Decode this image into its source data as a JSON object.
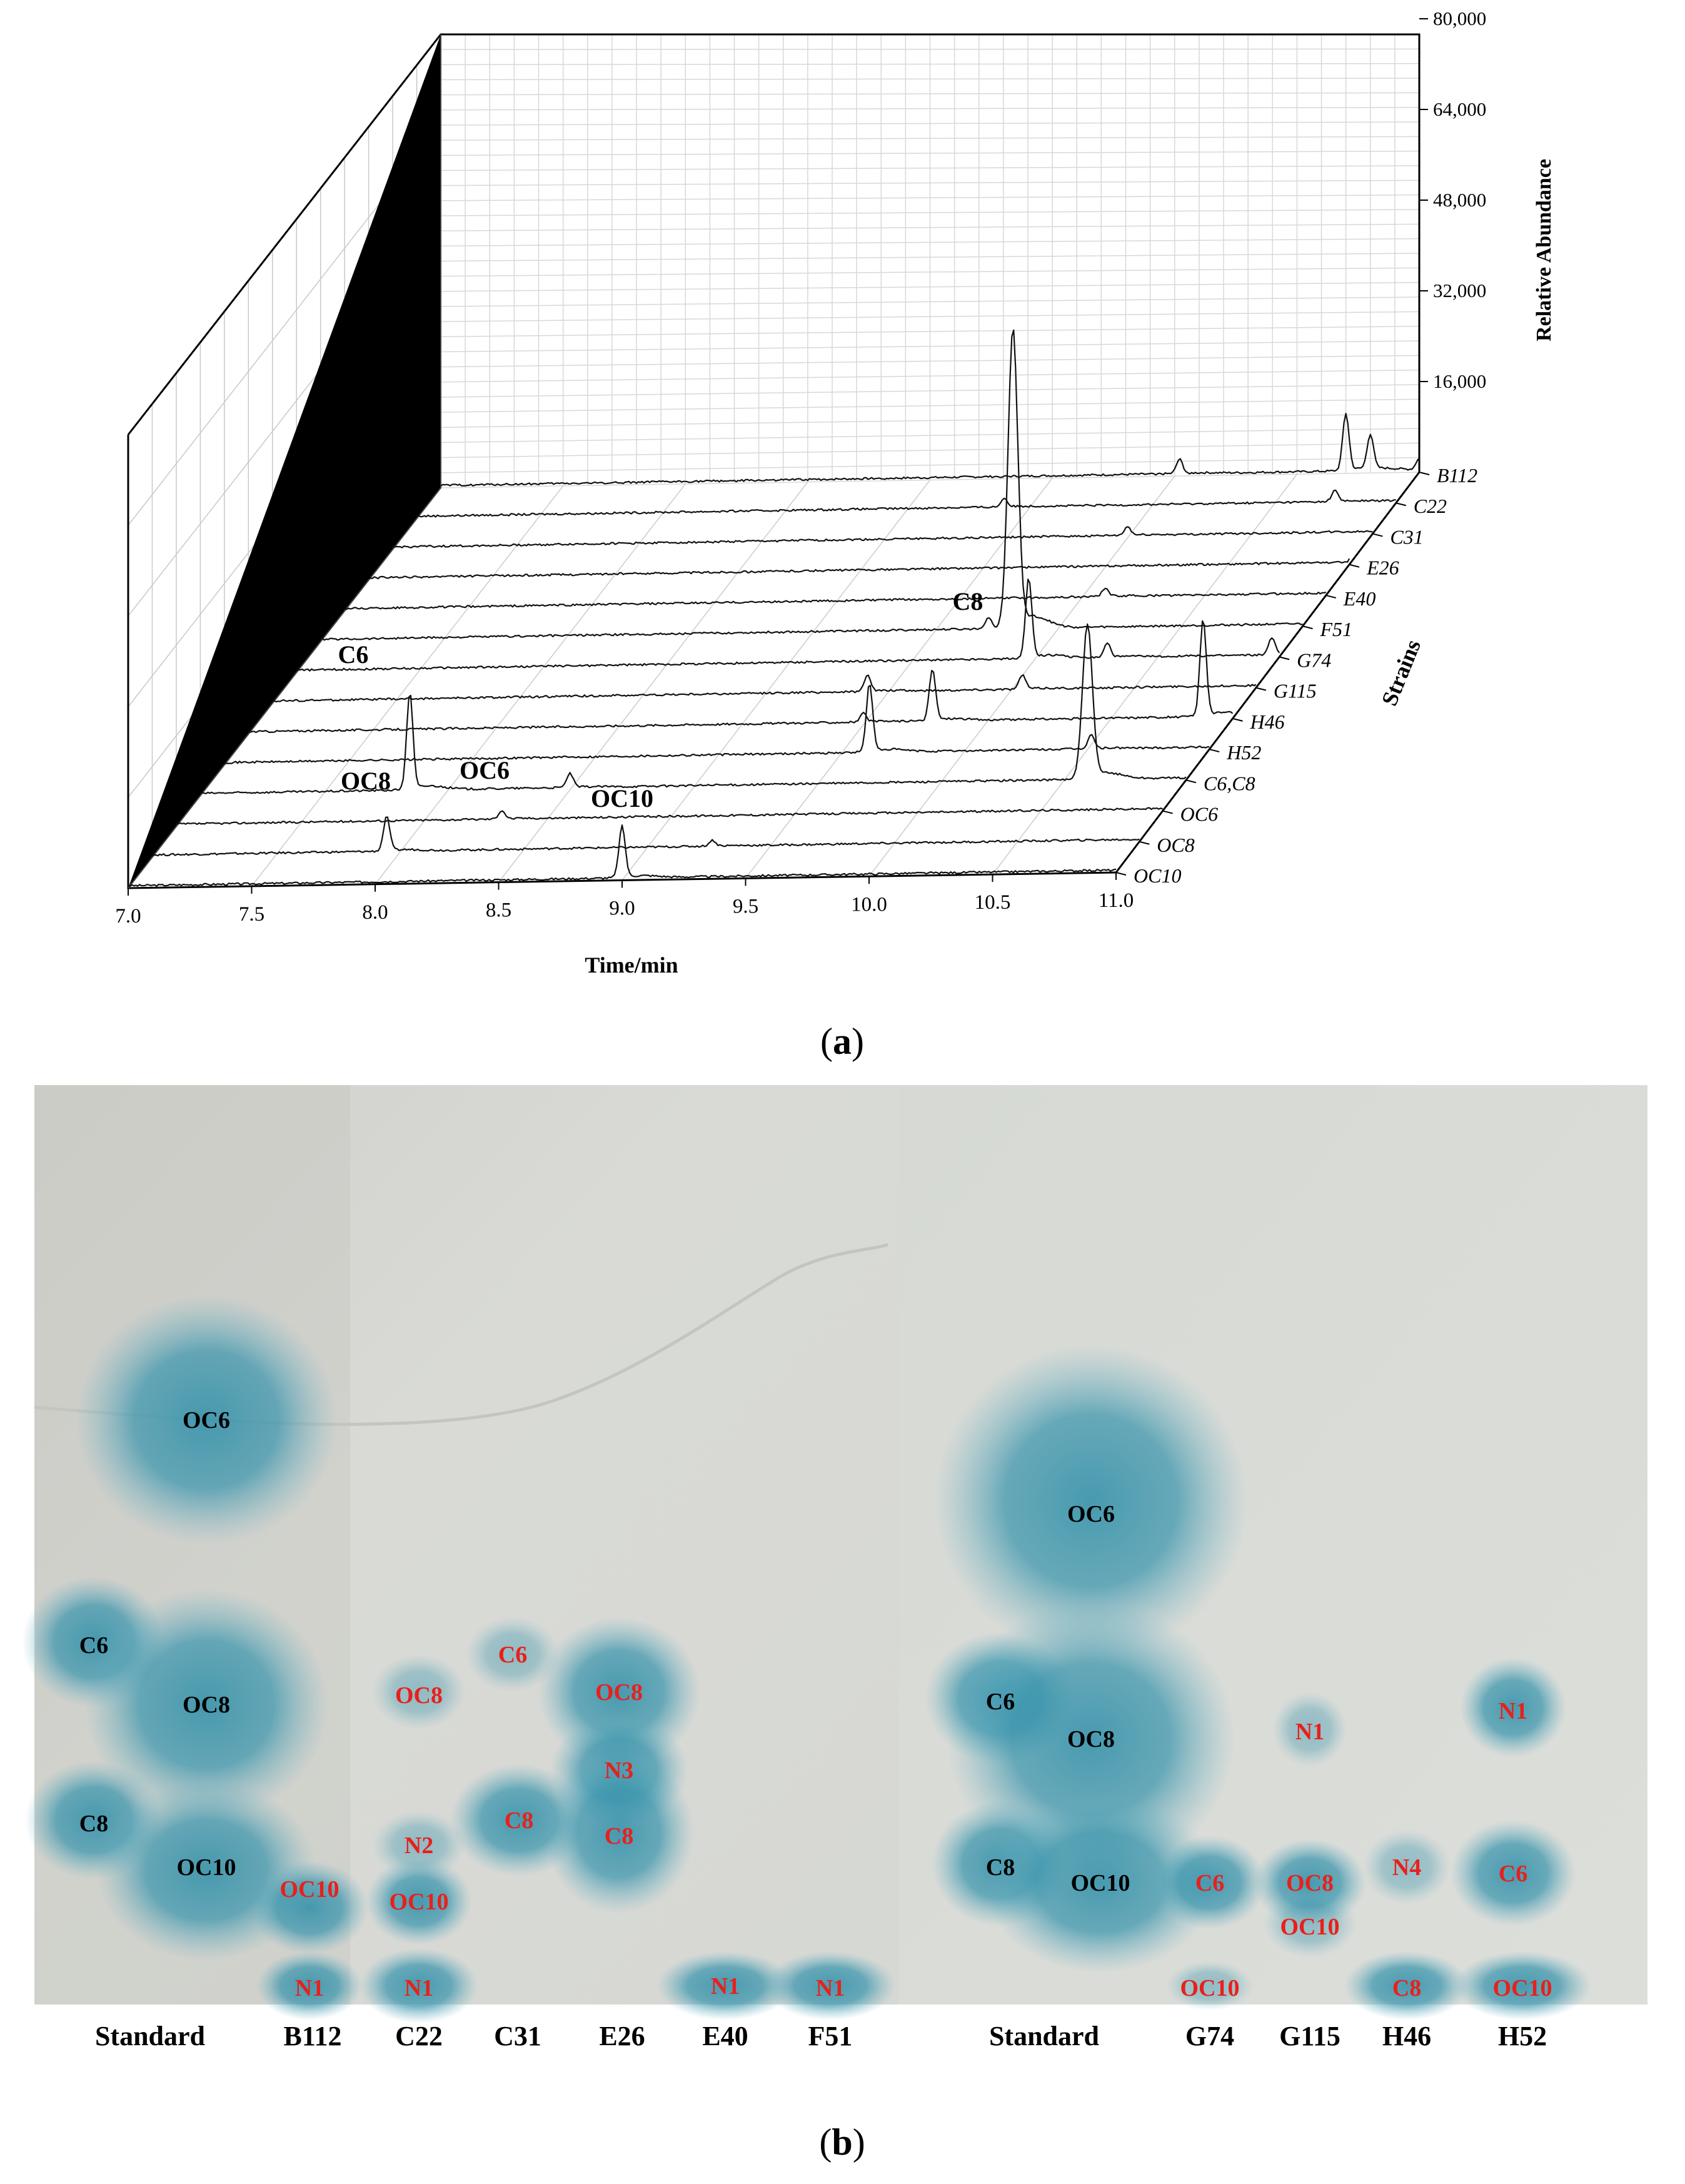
{
  "chart_data": [
    {
      "type": "line",
      "panel_label": "(a)",
      "panel_letter": "a",
      "xlabel": "Time/min",
      "ylabel": "Relative Abundance",
      "zlabel": "Strains",
      "xlim": [
        7.0,
        11.0
      ],
      "x_ticks": [
        "7.0",
        "7.5",
        "8.0",
        "8.5",
        "9.0",
        "9.5",
        "10.0",
        "10.5",
        "11.0"
      ],
      "ylim": [
        0,
        80000
      ],
      "y_ticks": [
        "16,000",
        "32,000",
        "48,000",
        "64,000",
        "80,000"
      ],
      "grid": true,
      "series": [
        {
          "name": "OC10",
          "peaks": [
            {
              "x": 9.0,
              "y": 9000
            }
          ]
        },
        {
          "name": "OC8",
          "peaks": [
            {
              "x": 7.95,
              "y": 6000
            },
            {
              "x": 9.27,
              "y": 1000
            }
          ]
        },
        {
          "name": "OC6",
          "peaks": [
            {
              "x": 8.32,
              "y": 1500
            }
          ]
        },
        {
          "name": "C6,C8",
          "peaks": [
            {
              "x": 7.85,
              "y": 17000
            },
            {
              "x": 8.5,
              "y": 2500
            },
            {
              "x": 10.6,
              "y": 27000
            }
          ]
        },
        {
          "name": "H52",
          "peaks": [
            {
              "x": 9.62,
              "y": 12000
            },
            {
              "x": 10.52,
              "y": 2500
            }
          ]
        },
        {
          "name": "H46",
          "peaks": [
            {
              "x": 9.5,
              "y": 1500
            },
            {
              "x": 9.78,
              "y": 9000
            },
            {
              "x": 10.88,
              "y": 17000
            }
          ]
        },
        {
          "name": "G115",
          "peaks": [
            {
              "x": 9.42,
              "y": 3000
            },
            {
              "x": 10.05,
              "y": 2500
            }
          ]
        },
        {
          "name": "G74",
          "peaks": [
            {
              "x": 9.98,
              "y": 14000
            },
            {
              "x": 10.3,
              "y": 2500
            },
            {
              "x": 10.97,
              "y": 3000
            }
          ]
        },
        {
          "name": "F51",
          "peaks": [
            {
              "x": 9.82,
              "y": 52000
            },
            {
              "x": 9.72,
              "y": 2000
            }
          ]
        },
        {
          "name": "E40",
          "peaks": [
            {
              "x": 10.1,
              "y": 1500
            }
          ]
        },
        {
          "name": "E26",
          "peaks": [
            {
              "x": 11.02,
              "y": 2000
            }
          ]
        },
        {
          "name": "C31",
          "peaks": [
            {
              "x": 10.0,
              "y": 1500
            },
            {
              "x": 11.3,
              "y": 16500
            }
          ]
        },
        {
          "name": "C22",
          "peaks": [
            {
              "x": 9.4,
              "y": 1500
            },
            {
              "x": 10.75,
              "y": 2000
            }
          ]
        },
        {
          "name": "B112",
          "peaks": [
            {
              "x": 10.02,
              "y": 2500
            },
            {
              "x": 10.7,
              "y": 10000
            },
            {
              "x": 10.8,
              "y": 6000
            },
            {
              "x": 11.0,
              "y": 2000
            }
          ]
        }
      ],
      "annotations": [
        "C6",
        "C8",
        "OC8",
        "OC6",
        "OC10"
      ]
    },
    {
      "type": "other",
      "panel_label": "(b)",
      "panel_letter": "b",
      "plates": [
        {
          "lanes": [
            "Standard",
            "B112",
            "C22",
            "C31",
            "E26",
            "E40",
            "F51"
          ],
          "spots": [
            {
              "label": "OC6",
              "color": "black"
            },
            {
              "label": "C6",
              "color": "black"
            },
            {
              "label": "OC8",
              "color": "black"
            },
            {
              "label": "C8",
              "color": "black"
            },
            {
              "label": "OC10",
              "color": "black"
            },
            {
              "label": "OC10",
              "color": "red"
            },
            {
              "label": "N1",
              "color": "red"
            },
            {
              "label": "OC8",
              "color": "red"
            },
            {
              "label": "N2",
              "color": "red"
            },
            {
              "label": "OC10",
              "color": "red"
            },
            {
              "label": "N1",
              "color": "red"
            },
            {
              "label": "C6",
              "color": "red"
            },
            {
              "label": "C8",
              "color": "red"
            },
            {
              "label": "OC8",
              "color": "red"
            },
            {
              "label": "N3",
              "color": "red"
            },
            {
              "label": "C8",
              "color": "red"
            },
            {
              "label": "N1",
              "color": "red"
            },
            {
              "label": "N1",
              "color": "red"
            }
          ]
        },
        {
          "lanes": [
            "Standard",
            "G74",
            "G115",
            "H46",
            "H52"
          ],
          "spots": [
            {
              "label": "OC6",
              "color": "black"
            },
            {
              "label": "C6",
              "color": "black"
            },
            {
              "label": "OC8",
              "color": "black"
            },
            {
              "label": "C8",
              "color": "black"
            },
            {
              "label": "OC10",
              "color": "black"
            },
            {
              "label": "C6",
              "color": "red"
            },
            {
              "label": "OC10",
              "color": "red"
            },
            {
              "label": "N1",
              "color": "red"
            },
            {
              "label": "OC8",
              "color": "red"
            },
            {
              "label": "OC10",
              "color": "red"
            },
            {
              "label": "N4",
              "color": "red"
            },
            {
              "label": "C8",
              "color": "red"
            },
            {
              "label": "N1",
              "color": "red"
            },
            {
              "label": "C6",
              "color": "red"
            },
            {
              "label": "OC10",
              "color": "red"
            },
            {
              "label": "N1",
              "color": "red"
            }
          ]
        }
      ]
    }
  ],
  "colors": {
    "spot_blue": "#3a95ad",
    "label_red": "#e8201c",
    "label_black": "#000000"
  }
}
